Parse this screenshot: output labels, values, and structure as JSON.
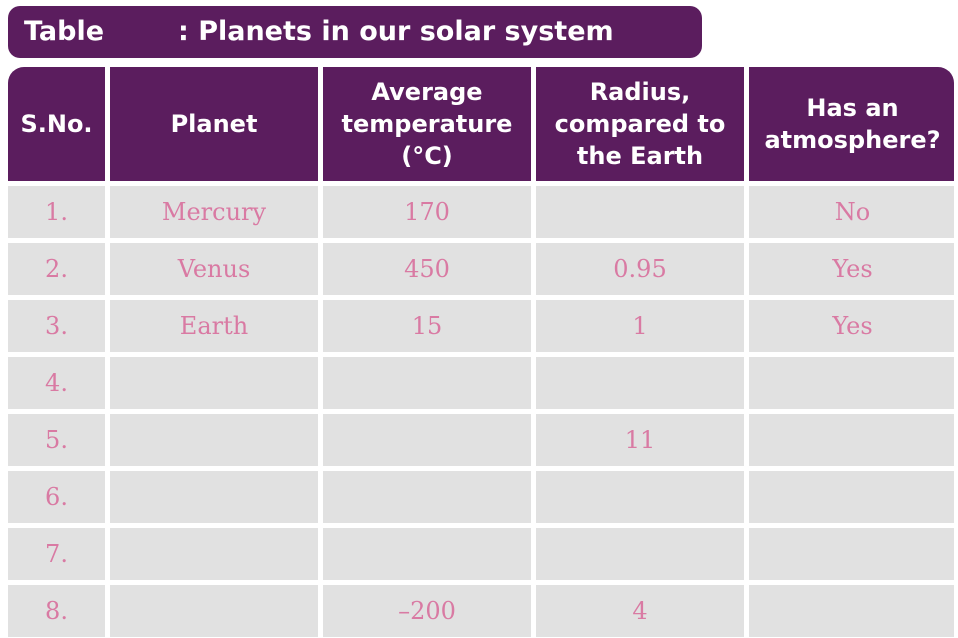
{
  "title": {
    "label": "Table",
    "text": ": Planets in our solar system"
  },
  "headers": [
    "S.No.",
    "Planet",
    "Average temperature (°C)",
    "Radius, compared to the Earth",
    "Has an atmosphere?"
  ],
  "rows": [
    [
      "1.",
      "Mercury",
      "170",
      "",
      "No"
    ],
    [
      "2.",
      "Venus",
      "450",
      "0.95",
      "Yes"
    ],
    [
      "3.",
      "Earth",
      "15",
      "1",
      "Yes"
    ],
    [
      "4.",
      "",
      "",
      "",
      ""
    ],
    [
      "5.",
      "",
      "",
      "11",
      ""
    ],
    [
      "6.",
      "",
      "",
      "",
      ""
    ],
    [
      "7.",
      "",
      "",
      "",
      ""
    ],
    [
      "8.",
      "",
      "–200",
      "4",
      ""
    ]
  ],
  "colors": {
    "header_bg": "#5b1d5e",
    "cell_bg": "#e1e1e1",
    "cell_text": "#d97aa3"
  }
}
